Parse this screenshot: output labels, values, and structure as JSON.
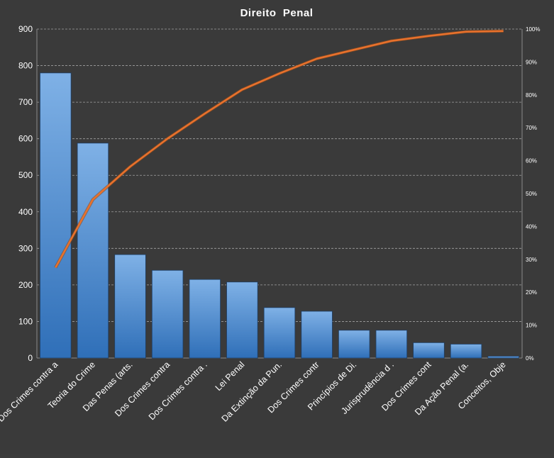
{
  "chart_data": {
    "type": "bar",
    "title": "Direito  Penal",
    "categories": [
      "Dos Crimes contra a",
      "Teoria do Crime",
      "Das Penas (arts.",
      "Dos Crimes contra",
      "Dos Crimes contra .",
      "Lei Penal",
      "Da Extinção da Pun.",
      "Dos Crimes contr",
      "Princípios de Di.",
      "Jurisprudência d .",
      "Dos Crimes cont",
      "Da Ação Penal (a.",
      "Conceitos, Obje"
    ],
    "series": [
      {
        "type": "bar",
        "values": [
          780,
          588,
          283,
          240,
          215,
          208,
          138,
          128,
          76,
          76,
          42,
          38,
          5
        ]
      },
      {
        "type": "line",
        "axis": "secondary",
        "values": [
          27.5,
          48.2,
          58.2,
          66.7,
          74.3,
          81.6,
          86.5,
          91.0,
          93.7,
          96.4,
          97.9,
          99.2,
          99.4
        ]
      }
    ],
    "ylim": [
      0,
      900
    ],
    "yticks": [
      0,
      100,
      200,
      300,
      400,
      500,
      600,
      700,
      800,
      900
    ],
    "y2lim": [
      0,
      100
    ],
    "y2ticks": [
      "0%",
      "10%",
      "20%",
      "30%",
      "40%",
      "50%",
      "60%",
      "70%",
      "80%",
      "90%",
      "100%"
    ],
    "grid": true,
    "legend": "none",
    "colors": {
      "bar_top": "#7fb1e6",
      "bar_bottom": "#2f6fb8",
      "line": "#e8712c",
      "grid": "#bdbdbd",
      "background": "#3a3a3a"
    }
  }
}
